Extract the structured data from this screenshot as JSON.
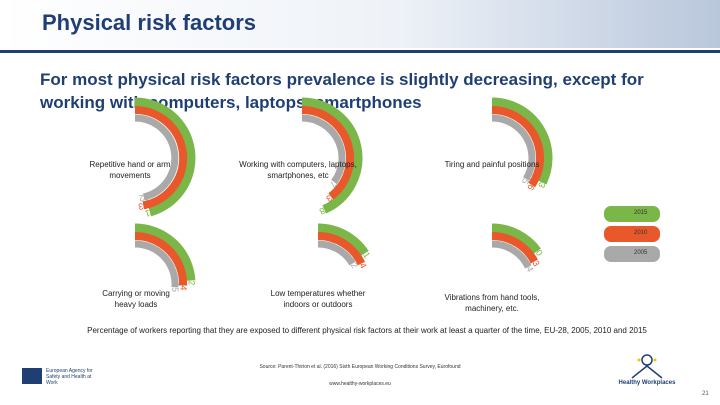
{
  "header": {
    "title": "Physical risk factors"
  },
  "subtitle": "For most physical risk factors prevalence is slightly decreasing, except for working with computers, laptops, smartphones",
  "legend": [
    {
      "label": "2015",
      "color": "#7ab648"
    },
    {
      "label": "2010",
      "color": "#e8582a"
    },
    {
      "label": "2005",
      "color": "#a9a9a9"
    }
  ],
  "chart_data": {
    "type": "radial-bar",
    "unit": "% of workers exposed at least a quarter of the time",
    "series": [
      "2015",
      "2010",
      "2005"
    ],
    "charts": [
      {
        "label": "Repetitive hand or arm movements",
        "values": [
          61,
          63,
          62
        ],
        "value_labels": [
          "61",
          "63",
          "62"
        ]
      },
      {
        "label": "Working with computers, laptops, smartphones, etc",
        "values": [
          58,
          53,
          47
        ],
        "value_labels": [
          "58",
          "53",
          "47"
        ]
      },
      {
        "label": "Tiring and painful positions",
        "values": [
          43,
          46,
          45
        ],
        "value_labels": [
          "43",
          "46",
          "45"
        ]
      },
      {
        "label": "Carrying or moving heavy loads",
        "values": [
          32,
          34,
          35
        ],
        "value_labels": [
          "32",
          "34",
          "35"
        ]
      },
      {
        "label": "Low temperatures whether indoors or outdoors",
        "values": [
          21,
          24,
          22
        ],
        "value_labels": [
          "21",
          "24",
          "22"
        ]
      },
      {
        "label": "Vibrations from hand tools, machinery, etc.",
        "values": [
          20,
          23,
          24
        ],
        "value_labels": [
          "20",
          "23",
          "24"
        ]
      }
    ]
  },
  "caption": "Percentage of workers reporting that they are exposed to different physical risk factors at their work at least a quarter of the time, EU-28, 2005, 2010 and 2015",
  "source": "Source: Parent-Thirion et al. (2016) Sixth European Working Conditions Survey, Eurofound",
  "url": "www.healthy-workplaces.eu",
  "logo_left_text": "European Agency for Safety and Health at Work",
  "logo_right_text": "Healthy Workplaces",
  "page_number": "21"
}
